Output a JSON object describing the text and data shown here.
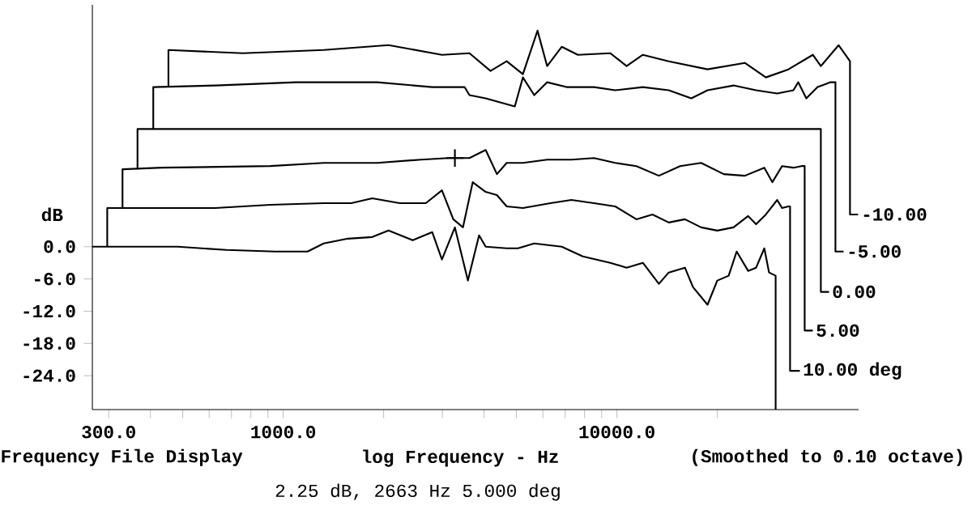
{
  "chart_data": {
    "type": "line",
    "xlabel": "log Frequency - Hz",
    "ylabel": "dB",
    "annotations": [
      "Frequency File Display",
      "(Smoothed to 0.10 octave)",
      "2.25 dB, 2663 Hz  5.000 deg"
    ],
    "log": "x",
    "xlim": [
      268,
      53000
    ],
    "ylim": [
      -30.3,
      45
    ],
    "xticks": [
      {
        "value": 300,
        "label": "300.0"
      },
      {
        "value": 400,
        "label": null
      },
      {
        "value": 500,
        "label": null
      },
      {
        "value": 600,
        "label": null
      },
      {
        "value": 700,
        "label": null
      },
      {
        "value": 800,
        "label": null
      },
      {
        "value": 900,
        "label": null
      },
      {
        "value": 1000,
        "label": "1000.0"
      },
      {
        "value": 2000,
        "label": null
      },
      {
        "value": 3000,
        "label": null
      },
      {
        "value": 4000,
        "label": null
      },
      {
        "value": 5000,
        "label": null
      },
      {
        "value": 6000,
        "label": null
      },
      {
        "value": 7000,
        "label": null
      },
      {
        "value": 8000,
        "label": null
      },
      {
        "value": 9000,
        "label": null
      },
      {
        "value": 10000,
        "label": "10000.0"
      },
      {
        "value": 20000,
        "label": null
      }
    ],
    "yticks": [
      {
        "value": 0,
        "label": "0.0"
      },
      {
        "value": -6,
        "label": "-6.0"
      },
      {
        "value": -12,
        "label": "-12.0"
      },
      {
        "value": -18,
        "label": "-18.0"
      },
      {
        "value": -24,
        "label": "-24.0"
      }
    ],
    "marker": "none",
    "line_style": "solid",
    "series": [
      {
        "name": "-10.00",
        "color": "#000000",
        "x": [
          453,
          453,
          757,
          1322,
          2068,
          2990,
          3615,
          4181,
          4674,
          5227,
          5782,
          6180,
          6832,
          7639,
          9558,
          10690,
          11960,
          14300,
          18690,
          24170,
          27950,
          32670,
          38650,
          40840,
          46180,
          49940,
          49940,
          52830
        ],
        "values": [
          29.7,
          36.6,
          36.0,
          36.6,
          37.5,
          35.7,
          36.0,
          32.7,
          34.5,
          32.1,
          40.2,
          33.6,
          37.2,
          35.7,
          36.0,
          33.6,
          35.7,
          34.5,
          33.0,
          34.2,
          31.5,
          33.0,
          35.7,
          33.6,
          37.5,
          34.5,
          6.0,
          6.0
        ]
      },
      {
        "name": "-5.00",
        "color": "#000000",
        "x": [
          408,
          408,
          626,
          1093,
          1912,
          2797,
          3496,
          3615,
          4043,
          4944,
          5227,
          5652,
          6180,
          7067,
          8541,
          9887,
          11960,
          14300,
          16710,
          18690,
          22360,
          26130,
          30220,
          33790,
          34940,
          36950,
          39930,
          43690,
          45170,
          45170,
          47770
        ],
        "values": [
          21.9,
          29.7,
          30.0,
          30.6,
          30.6,
          29.7,
          29.7,
          28.2,
          27.6,
          26.1,
          31.5,
          28.2,
          30.6,
          29.7,
          29.7,
          29.1,
          29.7,
          29.1,
          27.6,
          29.1,
          30.0,
          29.1,
          28.5,
          29.1,
          30.6,
          27.6,
          29.7,
          30.6,
          30.6,
          -0.9,
          -0.9
        ]
      },
      {
        "name": "0.00",
        "color": "#000000",
        "x": [
          366,
          366,
          1000,
          10000,
          40840,
          40840,
          43220
        ],
        "values": [
          14.4,
          21.9,
          21.9,
          21.9,
          21.9,
          -8.4,
          -8.4
        ]
      },
      {
        "name": "5.00",
        "color": "#000000",
        "x": [
          330,
          330,
          433,
          915,
          1322,
          1912,
          2587,
          3126,
          3270,
          3615,
          4043,
          4370,
          4674,
          5227,
          6180,
          7307,
          8541,
          9887,
          11440,
          13360,
          15460,
          17880,
          20900,
          24170,
          27650,
          29220,
          31250,
          33790,
          35720,
          36530,
          36530,
          38650
        ],
        "values": [
          7.2,
          14.4,
          14.7,
          15.0,
          15.6,
          15.6,
          16.2,
          16.5,
          16.5,
          16.5,
          18.0,
          13.5,
          15.6,
          15.6,
          16.2,
          16.2,
          16.5,
          15.6,
          15.0,
          13.2,
          15.0,
          15.6,
          13.5,
          13.2,
          14.7,
          12.0,
          15.0,
          14.7,
          15.0,
          15.0,
          -15.6,
          -15.6
        ]
      },
      {
        "name": "10.00 deg",
        "color": "#000000",
        "x": [
          297,
          297,
          433,
          626,
          915,
          1322,
          1599,
          1849,
          2235,
          2675,
          2990,
          3234,
          3457,
          3698,
          4043,
          4370,
          4674,
          5227,
          6320,
          7307,
          8541,
          9887,
          11440,
          12780,
          14300,
          15990,
          17880,
          19990,
          22360,
          24730,
          26130,
          27950,
          30220,
          31250,
          32670,
          33030,
          33030,
          35340
        ],
        "values": [
          0,
          7.2,
          7.2,
          7.2,
          7.8,
          8.1,
          8.1,
          9.0,
          8.1,
          8.1,
          10.5,
          5.1,
          3.6,
          12.0,
          10.2,
          9.6,
          7.5,
          7.2,
          8.1,
          8.7,
          8.1,
          7.5,
          5.1,
          6.0,
          4.5,
          5.1,
          3.6,
          3.0,
          3.6,
          5.7,
          4.2,
          6.0,
          8.7,
          7.2,
          7.5,
          7.5,
          -23.1,
          -23.1
        ]
      },
      {
        "color": "#000000",
        "x": [
          268,
          483,
          676,
          946,
          1183,
          1322,
          1563,
          1849,
          2068,
          2444,
          2797,
          2990,
          3270,
          3577,
          3864,
          4043,
          4674,
          5055,
          5652,
          6832,
          7901,
          9558,
          10690,
          11960,
          13360,
          14300,
          15990,
          16900,
          18690,
          19990,
          21620,
          22850,
          24730,
          26130,
          27650,
          28570,
          29900,
          29900
        ],
        "values": [
          0,
          0,
          -0.6,
          -0.9,
          -0.9,
          0.6,
          1.5,
          1.8,
          3.0,
          1.2,
          2.7,
          -2.4,
          3.6,
          -6.3,
          2.1,
          0,
          -0.3,
          -0.3,
          0.6,
          0,
          -1.8,
          -3.0,
          -3.9,
          -3.0,
          -6.9,
          -4.8,
          -3.9,
          -7.5,
          -10.8,
          -6.3,
          -5.4,
          -0.9,
          -4.5,
          -3.9,
          -0.3,
          -4.8,
          -5.4,
          -30.3
        ]
      },
      {
        "type": "scatter",
        "marker": "cross",
        "color": "#000000",
        "x": [
          3270
        ],
        "values": [
          16.5
        ]
      }
    ]
  }
}
